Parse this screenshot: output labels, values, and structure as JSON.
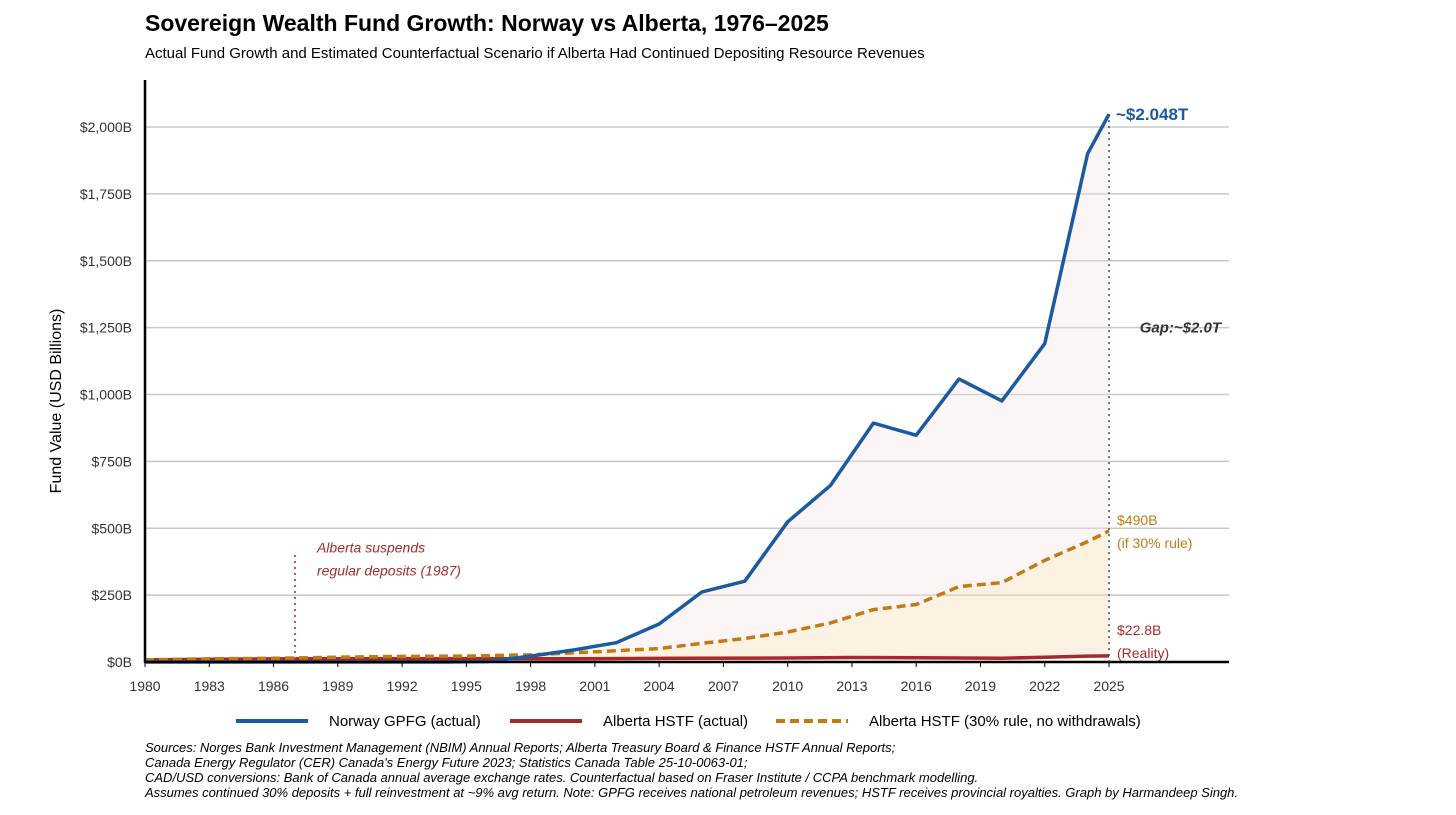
{
  "chart_data": {
    "type": "line",
    "title": "Sovereign Wealth Fund Growth: Norway vs Alberta, 1976–2025",
    "subtitle": "Actual Fund Growth and Estimated Counterfactual Scenario if Alberta Had Continued Depositing Resource Revenues",
    "ylabel": "Fund Value (USD Billions)",
    "xlabel": "",
    "xlim": [
      1980,
      2030
    ],
    "ylim": [
      0,
      2200
    ],
    "x_ticks": [
      1980,
      1983,
      1986,
      1989,
      1992,
      1995,
      1998,
      2001,
      2004,
      2007,
      2010,
      2013,
      2016,
      2019,
      2022,
      2025
    ],
    "y_ticks": [
      {
        "value": 0,
        "label": "$0B"
      },
      {
        "value": 250,
        "label": "$250B"
      },
      {
        "value": 500,
        "label": "$500B"
      },
      {
        "value": 750,
        "label": "$750B"
      },
      {
        "value": 1000,
        "label": "$1,000B"
      },
      {
        "value": 1250,
        "label": "$1,250B"
      },
      {
        "value": 1500,
        "label": "$1,500B"
      },
      {
        "value": 1750,
        "label": "$1,750B"
      },
      {
        "value": 2000,
        "label": "$2,000B"
      }
    ],
    "grid": true,
    "series": [
      {
        "name": "Norway GPFG (actual)",
        "color": "#1a5aa0",
        "style": "solid",
        "points": [
          [
            1980,
            0
          ],
          [
            1985,
            0
          ],
          [
            1990,
            0
          ],
          [
            1994,
            0
          ],
          [
            1996,
            2
          ],
          [
            1998,
            22
          ],
          [
            2000,
            45
          ],
          [
            2002,
            72
          ],
          [
            2004,
            142
          ],
          [
            2006,
            262
          ],
          [
            2008,
            302
          ],
          [
            2010,
            524
          ],
          [
            2012,
            660
          ],
          [
            2014,
            893
          ],
          [
            2016,
            848
          ],
          [
            2018,
            1058
          ],
          [
            2020,
            976
          ],
          [
            2022,
            1190
          ],
          [
            2024,
            1900
          ],
          [
            2025,
            2048
          ]
        ]
      },
      {
        "name": "Alberta HSTF (actual)",
        "color": "#a52a2a",
        "style": "solid",
        "points": [
          [
            1980,
            8
          ],
          [
            1984,
            11
          ],
          [
            1987,
            12
          ],
          [
            1990,
            12
          ],
          [
            1995,
            12
          ],
          [
            2000,
            12
          ],
          [
            2005,
            14
          ],
          [
            2010,
            15
          ],
          [
            2013,
            17
          ],
          [
            2016,
            16
          ],
          [
            2020,
            14
          ],
          [
            2022,
            18
          ],
          [
            2024,
            22
          ],
          [
            2025,
            22.8
          ]
        ]
      },
      {
        "name": "Alberta HSTF (30% rule, no withdrawals)",
        "color": "#c27a14",
        "style": "dashed",
        "points": [
          [
            1980,
            8
          ],
          [
            1983,
            12
          ],
          [
            1986,
            14
          ],
          [
            1989,
            18
          ],
          [
            1992,
            21
          ],
          [
            1995,
            22
          ],
          [
            1998,
            27
          ],
          [
            2001,
            38
          ],
          [
            2004,
            50
          ],
          [
            2006,
            70
          ],
          [
            2008,
            88
          ],
          [
            2010,
            112
          ],
          [
            2012,
            146
          ],
          [
            2014,
            196
          ],
          [
            2016,
            215
          ],
          [
            2018,
            282
          ],
          [
            2020,
            297
          ],
          [
            2022,
            380
          ],
          [
            2024,
            450
          ],
          [
            2025,
            490
          ]
        ]
      }
    ],
    "annotations": {
      "norway_end": "~$2.048T",
      "gap": "Gap:~$2.0T",
      "counterfactual_value": "$490B",
      "counterfactual_note": "(if 30% rule)",
      "actual_value": "$22.8B",
      "actual_note": "(Reality)",
      "event_line1": "Alberta suspends",
      "event_line2": "regular deposits (1987)",
      "event_year": 1987,
      "event_top_value": 400
    },
    "sources": [
      "Sources: Norges Bank Investment Management (NBIM) Annual Reports; Alberta Treasury Board & Finance HSTF Annual Reports;",
      "Canada Energy Regulator (CER) Canada's Energy Future 2023; Statistics Canada Table 25-10-0063-01;",
      "CAD/USD conversions: Bank of Canada annual average exchange rates. Counterfactual based on Fraser Institute / CCPA benchmark modelling.",
      "Assumes continued 30% deposits + full reinvestment at ~9% avg return. Note: GPFG receives national petroleum revenues; HSTF receives provincial royalties. Graph by Harmandeep Singh."
    ]
  }
}
